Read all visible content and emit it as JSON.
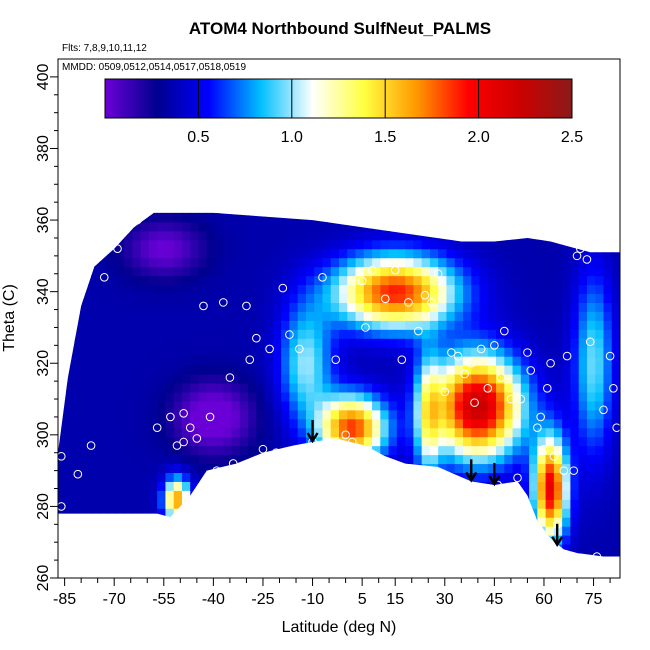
{
  "chart_data": {
    "type": "heatmap",
    "title": "ATOM4 Northbound SulfNeut_PALMS",
    "annotations": {
      "flights": "Flts: 7,8,9,10,11,12",
      "dates": "MMDD: 0509,0512,0514,0517,0518,0519"
    },
    "xlabel": "Latitude (deg N)",
    "ylabel": "Theta (C)",
    "xlim": [
      -87,
      83
    ],
    "ylim": [
      260,
      405
    ],
    "x_ticks": [
      -85,
      -70,
      -55,
      -40,
      -25,
      -10,
      5,
      15,
      30,
      45,
      60,
      75
    ],
    "y_ticks": [
      260,
      280,
      300,
      320,
      340,
      360,
      380,
      400
    ],
    "grid": false,
    "colorbar": {
      "position": "top",
      "range": [
        0,
        2.5
      ],
      "ticks": [
        0.5,
        1.0,
        1.5,
        2.0,
        2.5
      ],
      "tick_labels": [
        "0.5",
        "1.0",
        "1.5",
        "2.0",
        "2.5"
      ],
      "colors": [
        "#6b00d6",
        "#00008f",
        "#0000ff",
        "#00bfff",
        "#ffffff",
        "#ffff40",
        "#ff9900",
        "#ff0000",
        "#cc0000",
        "#8b1a1a"
      ]
    },
    "surface_boundary": [
      [
        -87,
        278
      ],
      [
        -57,
        278
      ],
      [
        -53,
        277
      ],
      [
        -47,
        283
      ],
      [
        -42,
        290
      ],
      [
        -33,
        292
      ],
      [
        -25,
        295
      ],
      [
        -16,
        297
      ],
      [
        -10,
        298
      ],
      [
        -3,
        299
      ],
      [
        6,
        297
      ],
      [
        12,
        294
      ],
      [
        18,
        292
      ],
      [
        28,
        291
      ],
      [
        33,
        289
      ],
      [
        38,
        287
      ],
      [
        45,
        286
      ],
      [
        52,
        287
      ],
      [
        55,
        283
      ],
      [
        58,
        276
      ],
      [
        62,
        271
      ],
      [
        66,
        268
      ],
      [
        70,
        267
      ],
      [
        78,
        266
      ],
      [
        83,
        266
      ]
    ],
    "upper_boundary": [
      [
        -87,
        295
      ],
      [
        -84,
        316
      ],
      [
        -80,
        336
      ],
      [
        -76,
        347
      ],
      [
        -70,
        352
      ],
      [
        -64,
        358
      ],
      [
        -58,
        362
      ],
      [
        -50,
        362
      ],
      [
        -40,
        362
      ],
      [
        -25,
        361
      ],
      [
        -10,
        360
      ],
      [
        5,
        358
      ],
      [
        20,
        356
      ],
      [
        35,
        354
      ],
      [
        45,
        354
      ],
      [
        55,
        355
      ],
      [
        62,
        354
      ],
      [
        66,
        353
      ],
      [
        70,
        352
      ],
      [
        74,
        351
      ],
      [
        83,
        351
      ]
    ],
    "arrows": [
      {
        "lat": -10,
        "theta": 298
      },
      {
        "lat": 38,
        "theta": 287
      },
      {
        "lat": 45,
        "theta": 286
      },
      {
        "lat": 64,
        "theta": 269
      }
    ],
    "samples": [
      {
        "lat": -86,
        "theta": 280
      },
      {
        "lat": -86,
        "theta": 294
      },
      {
        "lat": -84,
        "theta": 329
      },
      {
        "lat": -82,
        "theta": 333
      },
      {
        "lat": -81,
        "theta": 289
      },
      {
        "lat": -77,
        "theta": 297
      },
      {
        "lat": -73,
        "theta": 344
      },
      {
        "lat": -69,
        "theta": 352
      },
      {
        "lat": -66,
        "theta": 358
      },
      {
        "lat": -63,
        "theta": 360
      },
      {
        "lat": -57,
        "theta": 302
      },
      {
        "lat": -53,
        "theta": 305
      },
      {
        "lat": -51,
        "theta": 297
      },
      {
        "lat": -49,
        "theta": 306
      },
      {
        "lat": -49,
        "theta": 298
      },
      {
        "lat": -47,
        "theta": 302
      },
      {
        "lat": -45,
        "theta": 299
      },
      {
        "lat": -43,
        "theta": 336
      },
      {
        "lat": -41,
        "theta": 305
      },
      {
        "lat": -39,
        "theta": 290
      },
      {
        "lat": -37,
        "theta": 337
      },
      {
        "lat": -35,
        "theta": 316
      },
      {
        "lat": -34,
        "theta": 292
      },
      {
        "lat": -30,
        "theta": 336
      },
      {
        "lat": -29,
        "theta": 321
      },
      {
        "lat": -27,
        "theta": 327
      },
      {
        "lat": -25,
        "theta": 296
      },
      {
        "lat": -23,
        "theta": 324
      },
      {
        "lat": -21,
        "theta": 295
      },
      {
        "lat": -19,
        "theta": 341
      },
      {
        "lat": -17,
        "theta": 328
      },
      {
        "lat": -14,
        "theta": 324
      },
      {
        "lat": -10,
        "theta": 298
      },
      {
        "lat": -7,
        "theta": 344
      },
      {
        "lat": -3,
        "theta": 321
      },
      {
        "lat": 0,
        "theta": 300
      },
      {
        "lat": 2,
        "theta": 298
      },
      {
        "lat": 5,
        "theta": 343
      },
      {
        "lat": 6,
        "theta": 330
      },
      {
        "lat": 8,
        "theta": 346
      },
      {
        "lat": 12,
        "theta": 338
      },
      {
        "lat": 15,
        "theta": 346
      },
      {
        "lat": 17,
        "theta": 321
      },
      {
        "lat": 19,
        "theta": 337
      },
      {
        "lat": 22,
        "theta": 329
      },
      {
        "lat": 24,
        "theta": 339
      },
      {
        "lat": 26,
        "theta": 337
      },
      {
        "lat": 28,
        "theta": 345
      },
      {
        "lat": 30,
        "theta": 312
      },
      {
        "lat": 32,
        "theta": 323
      },
      {
        "lat": 34,
        "theta": 322
      },
      {
        "lat": 36,
        "theta": 317
      },
      {
        "lat": 38,
        "theta": 320
      },
      {
        "lat": 39,
        "theta": 309
      },
      {
        "lat": 41,
        "theta": 324
      },
      {
        "lat": 43,
        "theta": 313
      },
      {
        "lat": 45,
        "theta": 325
      },
      {
        "lat": 46,
        "theta": 286
      },
      {
        "lat": 47,
        "theta": 316
      },
      {
        "lat": 48,
        "theta": 329
      },
      {
        "lat": 50,
        "theta": 310
      },
      {
        "lat": 52,
        "theta": 288
      },
      {
        "lat": 53,
        "theta": 310
      },
      {
        "lat": 55,
        "theta": 323
      },
      {
        "lat": 56,
        "theta": 318
      },
      {
        "lat": 58,
        "theta": 302
      },
      {
        "lat": 59,
        "theta": 305
      },
      {
        "lat": 60,
        "theta": 296
      },
      {
        "lat": 61,
        "theta": 313
      },
      {
        "lat": 62,
        "theta": 320
      },
      {
        "lat": 63,
        "theta": 294
      },
      {
        "lat": 64,
        "theta": 275
      },
      {
        "lat": 66,
        "theta": 290
      },
      {
        "lat": 67,
        "theta": 322
      },
      {
        "lat": 69,
        "theta": 290
      },
      {
        "lat": 70,
        "theta": 350
      },
      {
        "lat": 71,
        "theta": 352
      },
      {
        "lat": 72,
        "theta": 354
      },
      {
        "lat": 73,
        "theta": 349
      },
      {
        "lat": 74,
        "theta": 326
      },
      {
        "lat": 76,
        "theta": 266
      },
      {
        "lat": 78,
        "theta": 307
      },
      {
        "lat": 80,
        "theta": 322
      },
      {
        "lat": 81,
        "theta": 313
      },
      {
        "lat": 82,
        "theta": 302
      }
    ]
  }
}
